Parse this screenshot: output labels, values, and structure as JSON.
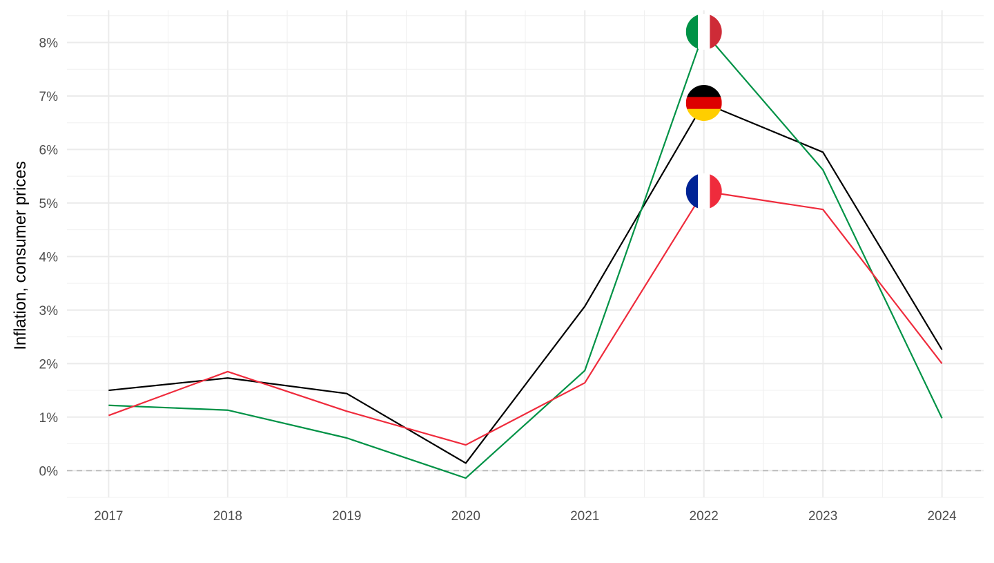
{
  "chart_data": {
    "type": "line",
    "title": "",
    "xlabel": "",
    "ylabel": "Inflation, consumer prices",
    "x": [
      2017,
      2018,
      2019,
      2020,
      2021,
      2022,
      2023,
      2024
    ],
    "x_tick_labels": [
      "2017",
      "2018",
      "2019",
      "2020",
      "2021",
      "2022",
      "2023",
      "2024"
    ],
    "y_ticks": [
      0,
      1,
      2,
      3,
      4,
      5,
      6,
      7,
      8
    ],
    "y_tick_labels": [
      "0%",
      "1%",
      "2%",
      "3%",
      "4%",
      "5%",
      "6%",
      "7%",
      "8%"
    ],
    "xlim": [
      2016.65,
      2024.35
    ],
    "ylim": [
      -0.5,
      8.6
    ],
    "grid": true,
    "reference_line": {
      "y": 0,
      "style": "dashed",
      "color": "#bdbdbd"
    },
    "series": [
      {
        "name": "Germany",
        "color": "#000000",
        "flag": "germany-flag",
        "label_year": 2022,
        "values": [
          1.5,
          1.73,
          1.44,
          0.14,
          3.07,
          6.87,
          5.95,
          2.26
        ]
      },
      {
        "name": "Italy",
        "color": "#009246",
        "flag": "italy-flag",
        "label_year": 2022,
        "values": [
          1.22,
          1.13,
          0.61,
          -0.14,
          1.87,
          8.2,
          5.62,
          0.98
        ]
      },
      {
        "name": "France",
        "color": "#ef2b3c",
        "flag": "france-flag",
        "label_year": 2022,
        "values": [
          1.03,
          1.85,
          1.11,
          0.48,
          1.64,
          5.22,
          4.88,
          2.0
        ]
      }
    ]
  }
}
